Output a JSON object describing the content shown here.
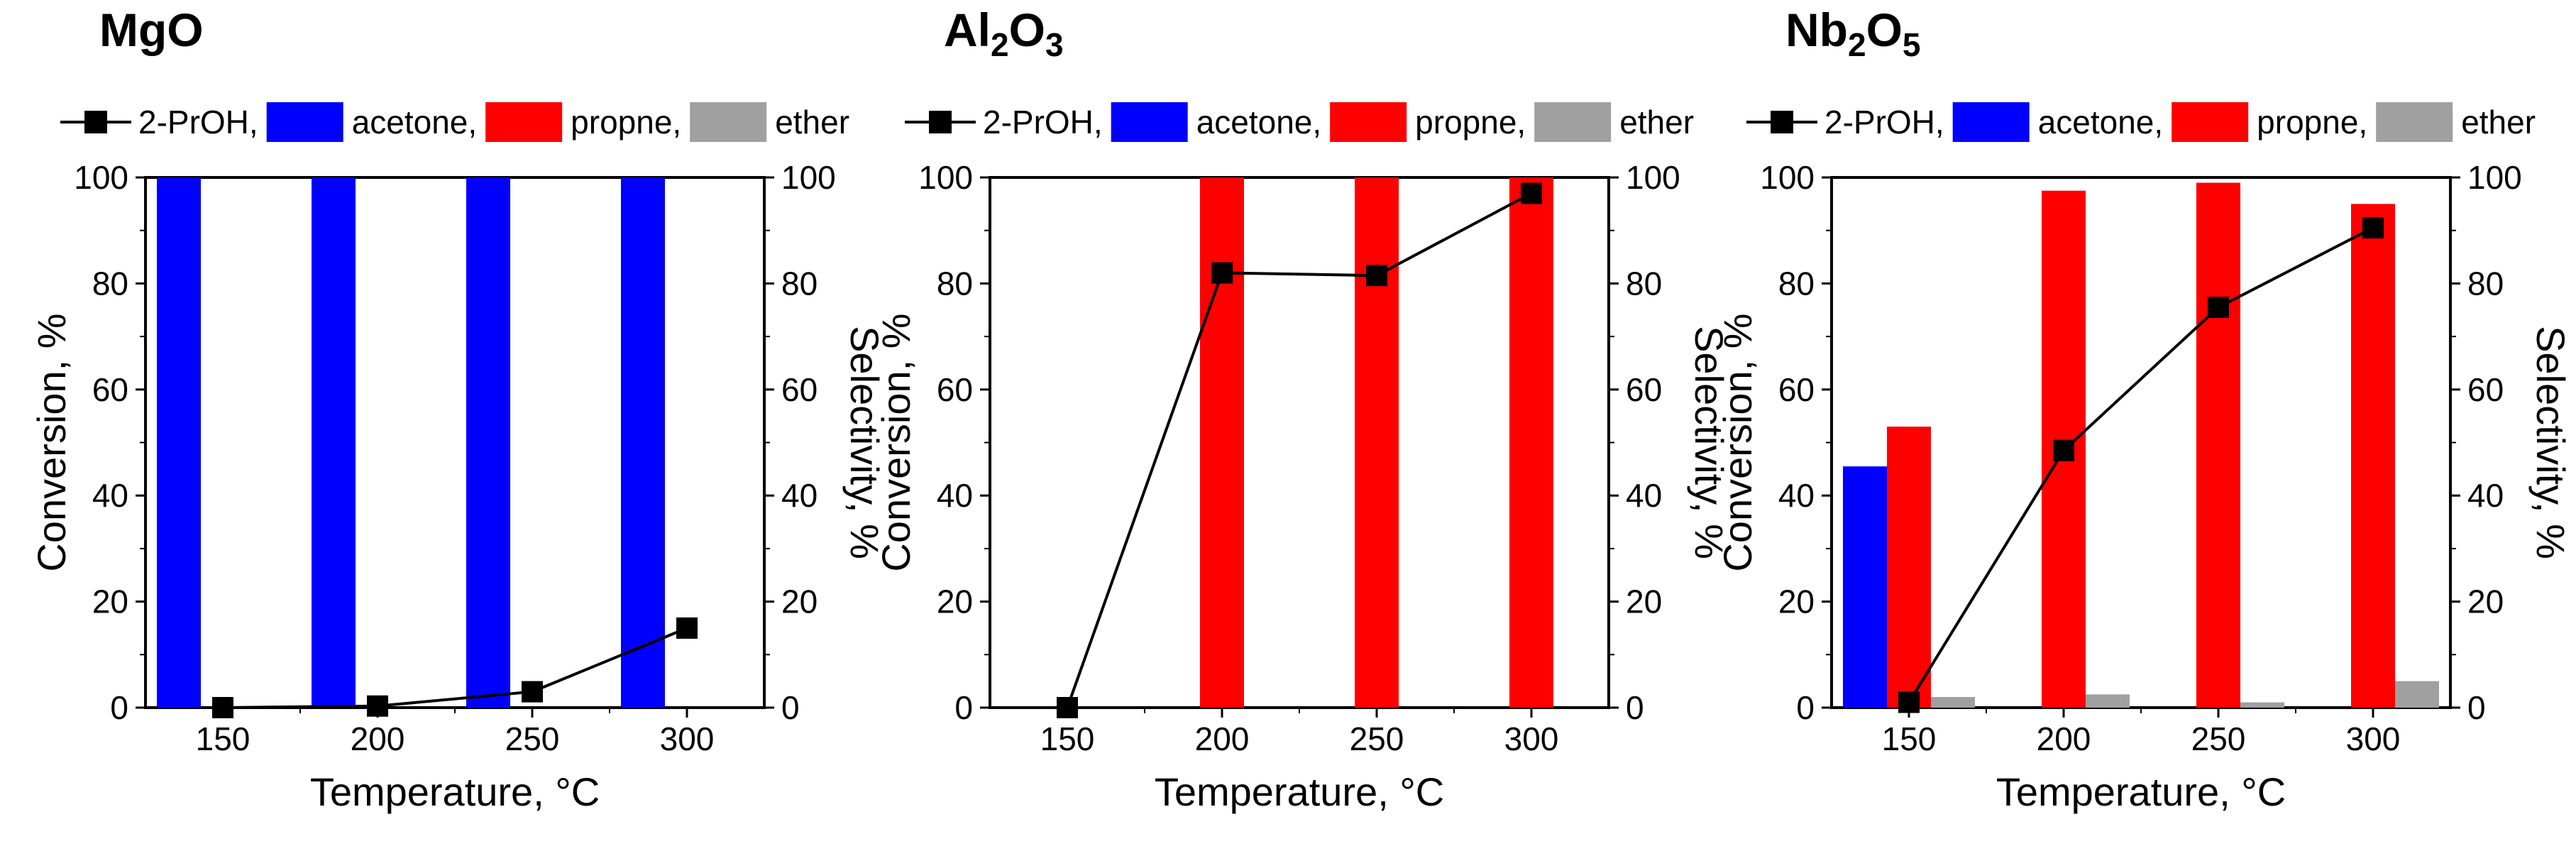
{
  "figure": {
    "panels": [
      "MgO",
      "Al2O3",
      "Nb2O5"
    ]
  },
  "colors": {
    "conversion": "#000000",
    "acetone": "#0000ff",
    "propene": "#ff0000",
    "ether": "#a0a0a0",
    "frame": "#000000"
  },
  "chart_data": [
    {
      "type": "bar",
      "title": "MgO",
      "title_parts": [
        {
          "t": "MgO",
          "sub": false
        }
      ],
      "legend": [
        {
          "label": "2-PrOH,",
          "kind": "line-marker",
          "color_key": "conversion"
        },
        {
          "label": "acetone,",
          "kind": "bar",
          "color_key": "acetone"
        },
        {
          "label": "propne,",
          "kind": "bar",
          "color_key": "propene"
        },
        {
          "label": "ether",
          "kind": "bar",
          "color_key": "ether"
        }
      ],
      "xlabel": "Temperature, °C",
      "ylabel_left": "Conversion, %",
      "ylabel_right": "Selectivity, %",
      "xlim": [
        125,
        325
      ],
      "ylim": [
        0,
        100
      ],
      "xticks": [
        "150",
        "200",
        "250",
        "300"
      ],
      "yticks": [
        "0",
        "20",
        "40",
        "60",
        "80",
        "100"
      ],
      "x": [
        150,
        200,
        250,
        300
      ],
      "series": [
        {
          "name": "2-PrOH",
          "type": "line",
          "axis": "left",
          "values": [
            0,
            0.3,
            3,
            15
          ]
        },
        {
          "name": "acetone",
          "type": "bar",
          "axis": "right",
          "values": [
            100,
            100,
            100,
            100
          ]
        },
        {
          "name": "propne",
          "type": "bar",
          "axis": "right",
          "values": [
            0,
            0,
            0,
            0
          ]
        },
        {
          "name": "ether",
          "type": "bar",
          "axis": "right",
          "values": [
            0,
            0,
            0,
            0
          ]
        }
      ]
    },
    {
      "type": "bar",
      "title": "Al2O3",
      "title_parts": [
        {
          "t": "Al",
          "sub": false
        },
        {
          "t": "2",
          "sub": true
        },
        {
          "t": "O",
          "sub": false
        },
        {
          "t": "3",
          "sub": true
        }
      ],
      "legend": [
        {
          "label": "2-PrOH,",
          "kind": "line-marker",
          "color_key": "conversion"
        },
        {
          "label": "acetone,",
          "kind": "bar",
          "color_key": "acetone"
        },
        {
          "label": "propne,",
          "kind": "bar",
          "color_key": "propene"
        },
        {
          "label": "ether",
          "kind": "bar",
          "color_key": "ether"
        }
      ],
      "xlabel": "Temperature, °C",
      "ylabel_left": "Conversion, %",
      "ylabel_right": "Selectivity, %",
      "xlim": [
        125,
        325
      ],
      "ylim": [
        0,
        100
      ],
      "xticks": [
        "150",
        "200",
        "250",
        "300"
      ],
      "yticks": [
        "0",
        "20",
        "40",
        "60",
        "80",
        "100"
      ],
      "x": [
        150,
        200,
        250,
        300
      ],
      "series": [
        {
          "name": "2-PrOH",
          "type": "line",
          "axis": "left",
          "values": [
            0,
            82,
            81.5,
            97
          ]
        },
        {
          "name": "acetone",
          "type": "bar",
          "axis": "right",
          "values": [
            0,
            0,
            0,
            0
          ]
        },
        {
          "name": "propne",
          "type": "bar",
          "axis": "right",
          "values": [
            0,
            100,
            100,
            100
          ]
        },
        {
          "name": "ether",
          "type": "bar",
          "axis": "right",
          "values": [
            0,
            0,
            0,
            0
          ]
        }
      ]
    },
    {
      "type": "bar",
      "title": "Nb2O5",
      "title_parts": [
        {
          "t": "Nb",
          "sub": false
        },
        {
          "t": "2",
          "sub": true
        },
        {
          "t": "O",
          "sub": false
        },
        {
          "t": "5",
          "sub": true
        }
      ],
      "legend": [
        {
          "label": "2-PrOH,",
          "kind": "line-marker",
          "color_key": "conversion"
        },
        {
          "label": "acetone,",
          "kind": "bar",
          "color_key": "acetone"
        },
        {
          "label": "propne,",
          "kind": "bar",
          "color_key": "propene"
        },
        {
          "label": "ether",
          "kind": "bar",
          "color_key": "ether"
        }
      ],
      "xlabel": "Temperature, °C",
      "ylabel_left": "Conversion, %",
      "ylabel_right": "Selectivity, %",
      "xlim": [
        125,
        325
      ],
      "ylim": [
        0,
        100
      ],
      "xticks": [
        "150",
        "200",
        "250",
        "300"
      ],
      "yticks": [
        "0",
        "20",
        "40",
        "60",
        "80",
        "100"
      ],
      "x": [
        150,
        200,
        250,
        300
      ],
      "series": [
        {
          "name": "2-PrOH",
          "type": "line",
          "axis": "left",
          "values": [
            1,
            48.5,
            75.5,
            90.5
          ]
        },
        {
          "name": "acetone",
          "type": "bar",
          "axis": "right",
          "values": [
            45.5,
            0,
            0,
            0
          ]
        },
        {
          "name": "propne",
          "type": "bar",
          "axis": "right",
          "values": [
            53,
            97.5,
            99,
            95
          ]
        },
        {
          "name": "ether",
          "type": "bar",
          "axis": "right",
          "values": [
            2,
            2.5,
            1,
            5
          ]
        }
      ]
    }
  ]
}
